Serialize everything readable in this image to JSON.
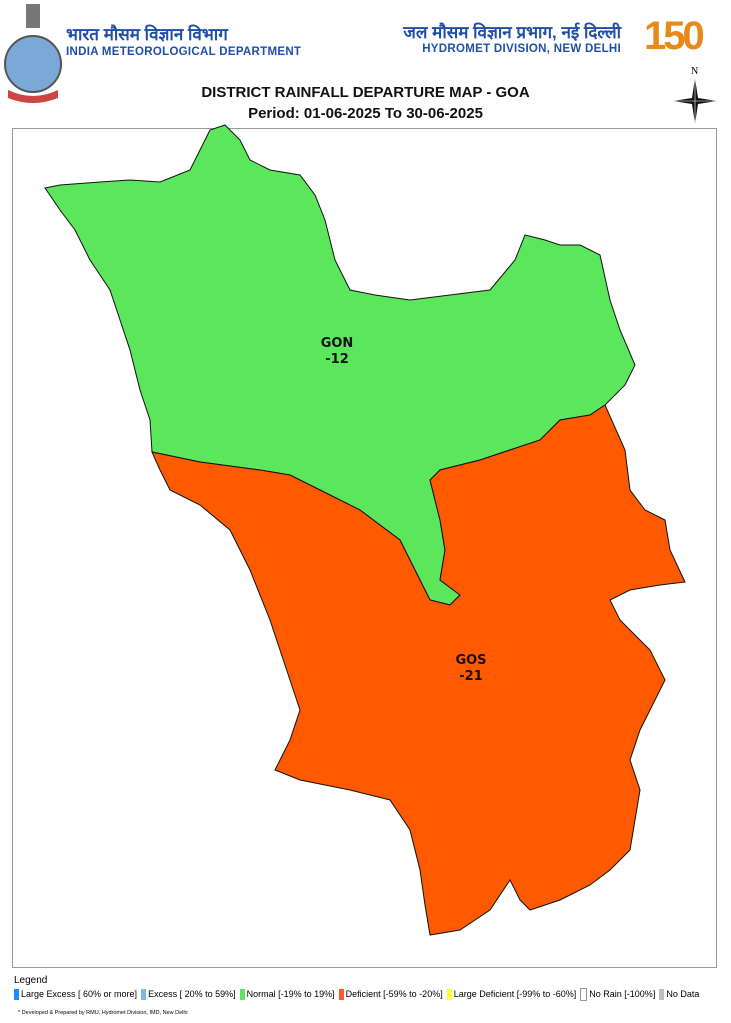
{
  "header": {
    "left_hindi": "भारत मौसम विज्ञान विभाग",
    "left_english": "INDIA METEOROLOGICAL DEPARTMENT",
    "right_hindi": "जल मौसम विज्ञान प्रभाग, नई दिल्ली",
    "right_english": "HYDROMET DIVISION, NEW DELHI",
    "logo_150": "150"
  },
  "title": "DISTRICT RAINFALL DEPARTURE MAP - GOA",
  "period": "Period: 01-06-2025 To 30-06-2025",
  "compass_label": "N",
  "districts": [
    {
      "code": "GON",
      "departure": "-12",
      "category": "Normal",
      "color": "#5ce65c"
    },
    {
      "code": "GOS",
      "departure": "-21",
      "category": "Deficient",
      "color": "#ff5a00"
    }
  ],
  "legend": {
    "title": "Legend",
    "items": [
      {
        "label": "Large Excess [ 60% or more]",
        "color": "#1a8cff"
      },
      {
        "label": "Excess [ 20% to 59%]",
        "color": "#7ab8e8"
      },
      {
        "label": "Normal [-19% to 19%]",
        "color": "#5ce65c"
      },
      {
        "label": "Deficient [-59% to -20%]",
        "color": "#ff5a28"
      },
      {
        "label": "Large Deficient [-99% to -60%]",
        "color": "#ffff33"
      },
      {
        "label": "No Rain  [-100%]",
        "color": "#ffffff"
      },
      {
        "label": "No Data",
        "color": "#bdbdbd"
      }
    ]
  },
  "footer": "* Developed & Prepared by RMU, Hydromet Division, IMD, New Delhi"
}
